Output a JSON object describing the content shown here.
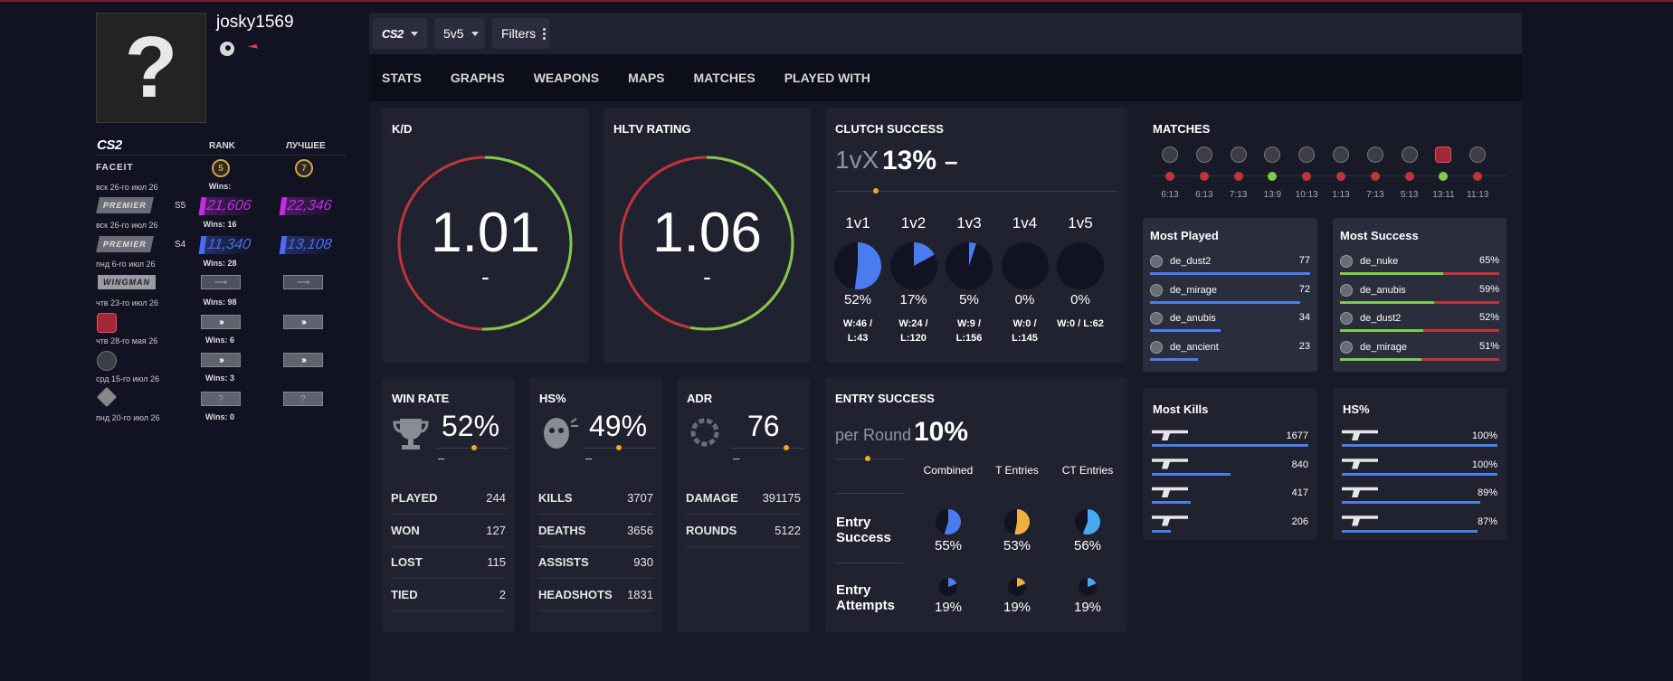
{
  "player": {
    "name": "josky1569",
    "avatar_glyph": "?"
  },
  "ranks": {
    "headers": {
      "game": "CS2",
      "rank": "RANK",
      "best": "ЛУЧШЕЕ"
    },
    "rows": [
      {
        "brand": "FACEIT",
        "date": "вск 26-го июл 26",
        "rank_level": "5",
        "best_level": "7",
        "wins": "Wins:"
      },
      {
        "brand": "PREMIER",
        "season": "S5",
        "date": "вск 26-го июл 26",
        "rank": "21,606",
        "best": "22,346",
        "color": "#c02ee0",
        "wins": "Wins: 16"
      },
      {
        "brand": "PREMIER",
        "season": "S4",
        "date": "пнд 6-го июл 26",
        "rank": "11,340",
        "best": "13,108",
        "color": "#4a6cf0",
        "wins": "Wins: 28"
      },
      {
        "brand": "WINGMAN",
        "date": "чтв 23-го июл 26",
        "wins": "Wins: 98"
      },
      {
        "date": "чтв 28-го мая 26",
        "wins": "Wins: 6"
      },
      {
        "date": "срд 15-го июл 26",
        "wins": "Wins: 3"
      },
      {
        "date": "пнд 20-го июл 26",
        "unranked": "?",
        "wins": "Wins: 0"
      }
    ]
  },
  "filters": {
    "game": "CS2",
    "mode": "5v5",
    "filters_label": "Filters"
  },
  "nav": [
    "STATS",
    "GRAPHS",
    "WEAPONS",
    "MAPS",
    "MATCHES",
    "PLAYED WITH"
  ],
  "kd": {
    "title": "K/D",
    "value": "1.01",
    "sub": "-",
    "ratio": 0.505
  },
  "hltv": {
    "title": "HLTV RATING",
    "value": "1.06",
    "sub": "-",
    "ratio": 0.53
  },
  "clutch": {
    "title": "CLUTCH SUCCESS",
    "prefix": "1vX",
    "pct": "13%",
    "dash": "–",
    "cols": [
      {
        "label": "1v1",
        "pct": "52%",
        "frac": 0.52,
        "wl": "W:46 / L:43"
      },
      {
        "label": "1v2",
        "pct": "17%",
        "frac": 0.17,
        "wl": "W:24 / L:120"
      },
      {
        "label": "1v3",
        "pct": "5%",
        "frac": 0.05,
        "wl": "W:9 / L:156"
      },
      {
        "label": "1v4",
        "pct": "0%",
        "frac": 0,
        "wl": "W:0 / L:145"
      },
      {
        "label": "1v5",
        "pct": "0%",
        "frac": 0,
        "wl": "W:0 / L:62"
      }
    ]
  },
  "winrate": {
    "title": "WIN RATE",
    "pct": "52%",
    "dash": "–",
    "rows": [
      {
        "k": "PLAYED",
        "v": "244"
      },
      {
        "k": "WON",
        "v": "127"
      },
      {
        "k": "LOST",
        "v": "115"
      },
      {
        "k": "TIED",
        "v": "2"
      }
    ]
  },
  "hs": {
    "title": "HS%",
    "pct": "49%",
    "dash": "–",
    "rows": [
      {
        "k": "KILLS",
        "v": "3707"
      },
      {
        "k": "DEATHS",
        "v": "3656"
      },
      {
        "k": "ASSISTS",
        "v": "930"
      },
      {
        "k": "HEADSHOTS",
        "v": "1831"
      }
    ]
  },
  "adr": {
    "title": "ADR",
    "value": "76",
    "dash": "–",
    "rows": [
      {
        "k": "DAMAGE",
        "v": "391175"
      },
      {
        "k": "ROUNDS",
        "v": "5122"
      }
    ]
  },
  "entry": {
    "title": "ENTRY SUCCESS",
    "prefix": "per Round",
    "pct": "10%",
    "col_headers": [
      "Combined",
      "T Entries",
      "CT Entries"
    ],
    "row1_label": "Entry Success",
    "row1": [
      {
        "pct": "55%",
        "frac": 0.55,
        "color": "#4a7cf0"
      },
      {
        "pct": "53%",
        "frac": 0.53,
        "color": "#f0b040"
      },
      {
        "pct": "56%",
        "frac": 0.56,
        "color": "#48a8f0"
      }
    ],
    "row2_label": "Entry Attempts",
    "row2": [
      {
        "pct": "19%",
        "frac": 0.19,
        "color": "#4a7cf0"
      },
      {
        "pct": "19%",
        "frac": 0.19,
        "color": "#f0b040"
      },
      {
        "pct": "19%",
        "frac": 0.19,
        "color": "#48a8f0"
      }
    ]
  },
  "matches": {
    "title": "MATCHES",
    "items": [
      {
        "score": "6:13",
        "result": "loss"
      },
      {
        "score": "6:13",
        "result": "loss"
      },
      {
        "score": "7:13",
        "result": "loss"
      },
      {
        "score": "13:9",
        "result": "win"
      },
      {
        "score": "10:13",
        "result": "loss"
      },
      {
        "score": "1:13",
        "result": "loss"
      },
      {
        "score": "7:13",
        "result": "loss"
      },
      {
        "score": "5:13",
        "result": "loss"
      },
      {
        "score": "13:11",
        "result": "win"
      },
      {
        "score": "11:13",
        "result": "loss"
      }
    ]
  },
  "most_played": {
    "title": "Most Played",
    "rows": [
      {
        "map": "de_dust2",
        "value": "77",
        "frac": 1.0
      },
      {
        "map": "de_mirage",
        "value": "72",
        "frac": 0.94
      },
      {
        "map": "de_anubis",
        "value": "34",
        "frac": 0.44
      },
      {
        "map": "de_ancient",
        "value": "23",
        "frac": 0.3
      }
    ]
  },
  "most_success": {
    "title": "Most Success",
    "rows": [
      {
        "map": "de_nuke",
        "value": "65%",
        "frac": 0.65
      },
      {
        "map": "de_anubis",
        "value": "59%",
        "frac": 0.59
      },
      {
        "map": "de_dust2",
        "value": "52%",
        "frac": 0.52
      },
      {
        "map": "de_mirage",
        "value": "51%",
        "frac": 0.51
      }
    ]
  },
  "most_kills": {
    "title": "Most Kills",
    "rows": [
      {
        "weapon": "ak47-icon",
        "value": "1677",
        "frac": 1.0
      },
      {
        "weapon": "m4-icon",
        "value": "840",
        "frac": 0.5
      },
      {
        "weapon": "awp-icon",
        "value": "417",
        "frac": 0.25
      },
      {
        "weapon": "pistol-icon",
        "value": "206",
        "frac": 0.12
      }
    ]
  },
  "hs_weapons": {
    "title": "HS%",
    "rows": [
      {
        "weapon": "dualies-icon",
        "value": "100%",
        "frac": 1.0
      },
      {
        "weapon": "p90-icon",
        "value": "100%",
        "frac": 1.0
      },
      {
        "weapon": "tec9-icon",
        "value": "89%",
        "frac": 0.89
      },
      {
        "weapon": "glock-icon",
        "value": "87%",
        "frac": 0.87
      }
    ]
  },
  "colors": {
    "accent_blue": "#4a7cf0",
    "win_green": "#7ecb4a",
    "loss_red": "#c0343a",
    "gold": "#f5a623"
  }
}
